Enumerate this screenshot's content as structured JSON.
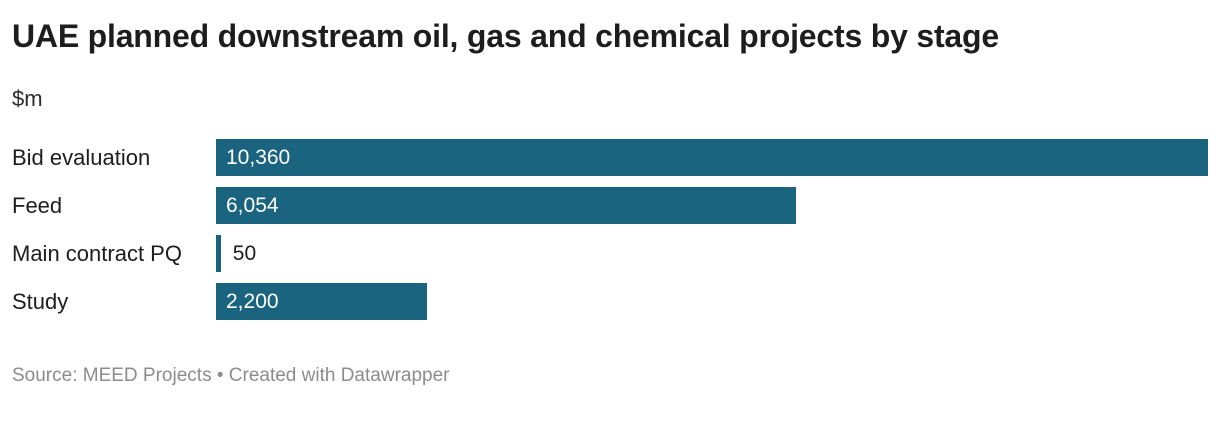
{
  "header": {
    "title": "UAE planned downstream oil, gas and chemical projects by stage",
    "subtitle": "$m"
  },
  "footer": {
    "text": "Source: MEED Projects • Created with Datawrapper"
  },
  "colors": {
    "bar": "#1a6480",
    "value_inside": "#ffffff",
    "value_outside": "#1d1d1d",
    "title_text": "#1d1d1d",
    "footer_text": "#8c8c8c"
  },
  "chart_data": {
    "type": "bar",
    "orientation": "horizontal",
    "title": "UAE planned downstream oil, gas and chemical projects by stage",
    "unit_label": "$m",
    "categories": [
      "Bid evaluation",
      "Feed",
      "Main contract PQ",
      "Study"
    ],
    "values": [
      10360,
      6054,
      50,
      2200
    ],
    "value_labels": [
      "10,360",
      "6,054",
      "50",
      "2,200"
    ],
    "value_label_positions": [
      "inside",
      "inside",
      "outside",
      "inside"
    ],
    "xlim": [
      0,
      10360
    ],
    "grid": false,
    "legend": false
  }
}
